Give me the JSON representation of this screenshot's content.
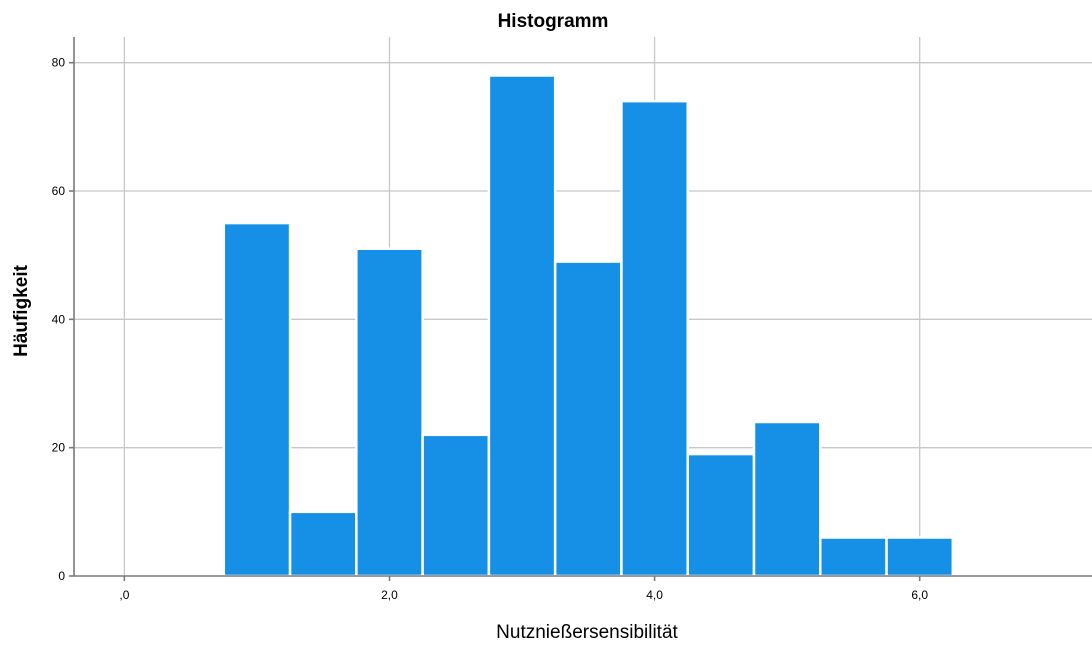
{
  "chart_data": {
    "type": "bar",
    "title": "Histogramm",
    "xlabel": "Nutznießersensibilität",
    "ylabel": "Häufigkeit",
    "bin_width": 0.5,
    "bins": [
      {
        "start": 0.75,
        "end": 1.25,
        "value": 55
      },
      {
        "start": 1.25,
        "end": 1.75,
        "value": 10
      },
      {
        "start": 1.75,
        "end": 2.25,
        "value": 51
      },
      {
        "start": 2.25,
        "end": 2.75,
        "value": 22
      },
      {
        "start": 2.75,
        "end": 3.25,
        "value": 78
      },
      {
        "start": 3.25,
        "end": 3.75,
        "value": 49
      },
      {
        "start": 3.75,
        "end": 4.25,
        "value": 74
      },
      {
        "start": 4.25,
        "end": 4.75,
        "value": 19
      },
      {
        "start": 4.75,
        "end": 5.25,
        "value": 24
      },
      {
        "start": 5.25,
        "end": 5.75,
        "value": 6
      },
      {
        "start": 5.75,
        "end": 6.25,
        "value": 6
      }
    ],
    "xlim": [
      -0.38,
      7.3
    ],
    "ylim": [
      0,
      84
    ],
    "x_ticks": [
      {
        "value": 0,
        "label": ",0"
      },
      {
        "value": 2,
        "label": "2,0"
      },
      {
        "value": 4,
        "label": "4,0"
      },
      {
        "value": 6,
        "label": "6,0"
      }
    ],
    "y_ticks": [
      {
        "value": 0,
        "label": "0"
      },
      {
        "value": 20,
        "label": "20"
      },
      {
        "value": 40,
        "label": "40"
      },
      {
        "value": 60,
        "label": "60"
      },
      {
        "value": 80,
        "label": "80"
      }
    ],
    "grid": true,
    "colors": {
      "bar": "#1590e6",
      "bar_edge": "#ffffff",
      "grid": "#c8c8c8",
      "axis": "#7a7a7a"
    }
  }
}
